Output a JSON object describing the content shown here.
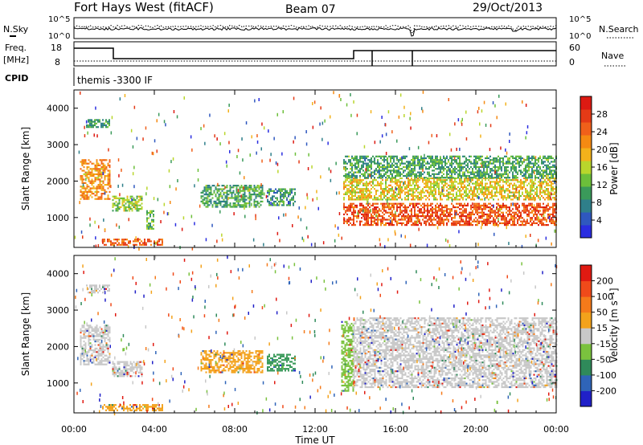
{
  "header": {
    "site": "Fort Hays West (fitACF)",
    "beam": "Beam 07",
    "date": "29/Oct/2013"
  },
  "status_strip": {
    "noise_left_label": "N.Sky",
    "noise_right_label": "N.Search",
    "noise_ticks": [
      "10^5",
      "10^0"
    ],
    "freq_left_label_1": "Freq.",
    "freq_left_label_2": "[MHz]",
    "freq_left_ticks": [
      "18",
      "8"
    ],
    "freq_right_label": "Nave",
    "freq_right_ticks": [
      "60",
      "0"
    ],
    "cpid_label": "CPID",
    "cpid_value": "themis -3300 IF"
  },
  "chart_data": [
    {
      "type": "heatmap",
      "name": "power",
      "ylabel": "Slant Range [km]",
      "y_ticks": [
        1000,
        2000,
        3000,
        4000
      ],
      "ylim": [
        180,
        4500
      ],
      "xlim_hours": [
        0,
        24
      ],
      "colorbar": {
        "label": "Power [dB]",
        "ticks": [
          4,
          8,
          12,
          16,
          20,
          24,
          28
        ],
        "range": [
          0,
          32
        ],
        "colors": [
          "#2a2de0",
          "#2f58bf",
          "#2f7f8a",
          "#3a9a5a",
          "#6cbf3a",
          "#b9d62c",
          "#f3b21b",
          "#f58a12",
          "#f0601a",
          "#e43a16",
          "#dd1a12"
        ]
      },
      "echo_regions": [
        {
          "t": [
            0.3,
            1.8
          ],
          "r": [
            1500,
            2600
          ],
          "level": 22
        },
        {
          "t": [
            0.6,
            1.8
          ],
          "r": [
            3500,
            3700
          ],
          "level": 10
        },
        {
          "t": [
            1.9,
            3.4
          ],
          "r": [
            1200,
            1600
          ],
          "level": 14
        },
        {
          "t": [
            3.6,
            4.0
          ],
          "r": [
            700,
            1200
          ],
          "level": 12
        },
        {
          "t": [
            1.4,
            4.4
          ],
          "r": [
            230,
            420
          ],
          "level": 26
        },
        {
          "t": [
            6.3,
            9.4
          ],
          "r": [
            1300,
            1900
          ],
          "level": 10
        },
        {
          "t": [
            9.6,
            11.0
          ],
          "r": [
            1350,
            1800
          ],
          "level": 8
        },
        {
          "t": [
            13.4,
            24.0
          ],
          "r": [
            800,
            1400
          ],
          "level": 27
        },
        {
          "t": [
            13.4,
            24.0
          ],
          "r": [
            1500,
            2100
          ],
          "level": 18
        },
        {
          "t": [
            13.4,
            24.0
          ],
          "r": [
            2100,
            2700
          ],
          "level": 10
        }
      ]
    },
    {
      "type": "heatmap",
      "name": "velocity",
      "ylabel": "Slant Range [km]",
      "y_ticks": [
        1000,
        2000,
        3000,
        4000
      ],
      "ylim": [
        180,
        4500
      ],
      "xlabel": "Time UT",
      "x_ticks": [
        "00:00",
        "04:00",
        "08:00",
        "12:00",
        "16:00",
        "20:00",
        "00:00"
      ],
      "xlim_hours": [
        0,
        24
      ],
      "colorbar": {
        "label": "Velocity [m s⁻¹]",
        "ticks": [
          "200",
          "100",
          "50",
          "15",
          "-15",
          "-50",
          "-100",
          "-200"
        ],
        "colors": [
          "#2020c8",
          "#2f64b8",
          "#2f8a5a",
          "#7ac23e",
          "#c8c8c8",
          "#f3a21b",
          "#f57a1a",
          "#f04a1a",
          "#e01a12"
        ]
      },
      "echo_regions": [
        {
          "t": [
            0.3,
            1.8
          ],
          "r": [
            1500,
            2600
          ],
          "color": "#c8c8c8"
        },
        {
          "t": [
            0.6,
            1.8
          ],
          "r": [
            3500,
            3700
          ],
          "color": "#c8c8c8"
        },
        {
          "t": [
            1.9,
            3.4
          ],
          "r": [
            1200,
            1600
          ],
          "color": "#c8c8c8"
        },
        {
          "t": [
            1.4,
            4.4
          ],
          "r": [
            230,
            420
          ],
          "color": "#f3a21b"
        },
        {
          "t": [
            6.3,
            9.4
          ],
          "r": [
            1300,
            1900
          ],
          "color": "#f3a21b"
        },
        {
          "t": [
            9.6,
            11.0
          ],
          "r": [
            1350,
            1800
          ],
          "color": "#3a9a5a"
        },
        {
          "t": [
            13.3,
            13.9
          ],
          "r": [
            800,
            2700
          ],
          "color": "#7ac23e"
        },
        {
          "t": [
            13.9,
            24.0
          ],
          "r": [
            900,
            2800
          ],
          "color": "#c8c8c8"
        }
      ]
    }
  ]
}
